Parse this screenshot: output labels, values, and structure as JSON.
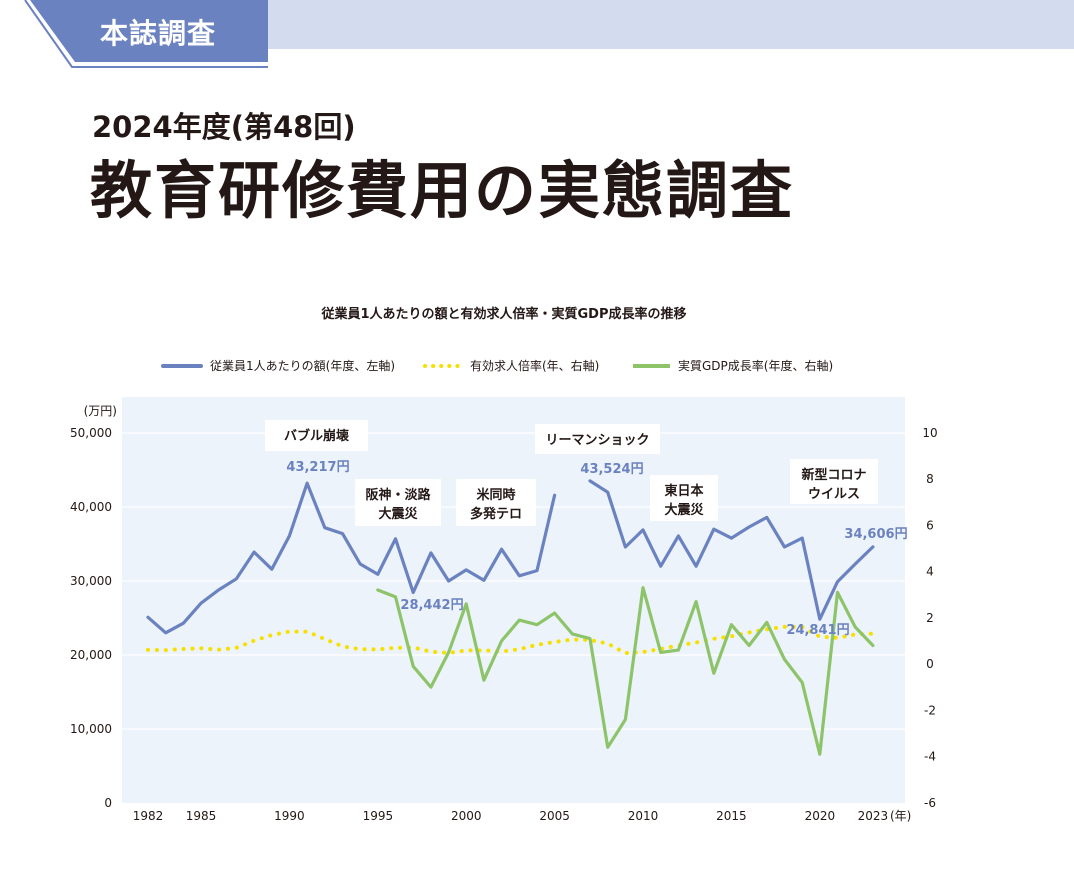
{
  "header": {
    "section_tab": "本誌調査",
    "subtitle": "2024年度(第48回)",
    "title": "教育研修費用の実態調査"
  },
  "colors": {
    "tab": "#6b82c1",
    "band": "#d3dcef",
    "plot_bg": "#edf3fb",
    "blue": "#6b82c1",
    "yellow": "#f5e000",
    "green": "#8dc46a"
  },
  "chart_data": {
    "type": "line",
    "title": "従業員1人あたりの額と有効求人倍率・実質GDP成長率の推移",
    "legend_position": "top",
    "grid": true,
    "x_ticks": [
      "1982",
      "1985",
      "1990",
      "1995",
      "2000",
      "2005",
      "2010",
      "2015",
      "2020",
      "2023"
    ],
    "x_unit": "(年)",
    "left_axis": {
      "unit": "(万円)",
      "range": [
        0,
        50000
      ],
      "ticks": [
        "0",
        "10,000",
        "20,000",
        "30,000",
        "40,000",
        "50,000"
      ]
    },
    "right_axis": {
      "range": [
        -6,
        10
      ],
      "ticks": [
        "-6",
        "-4",
        "-2",
        "0",
        "2",
        "4",
        "6",
        "8",
        "10"
      ]
    },
    "x": [
      1982,
      1983,
      1984,
      1985,
      1986,
      1987,
      1988,
      1989,
      1990,
      1991,
      1992,
      1993,
      1994,
      1995,
      1996,
      1997,
      1998,
      1999,
      2000,
      2001,
      2002,
      2003,
      2004,
      2005,
      2006,
      2007,
      2008,
      2009,
      2010,
      2011,
      2012,
      2013,
      2014,
      2015,
      2016,
      2017,
      2018,
      2019,
      2020,
      2021,
      2022,
      2023
    ],
    "series": [
      {
        "name": "従業員1人あたりの額(年度、左軸)",
        "axis": "left",
        "style": "solid",
        "color": "#6b82c1",
        "values": [
          25100,
          23000,
          24300,
          27000,
          28800,
          30300,
          33900,
          31600,
          36100,
          43217,
          37200,
          36400,
          32300,
          30900,
          35700,
          28442,
          33800,
          30000,
          31500,
          30100,
          34300,
          30700,
          31400,
          41600,
          null,
          43524,
          42000,
          34600,
          36900,
          32000,
          36100,
          32000,
          37000,
          35800,
          37300,
          38600,
          34600,
          35800,
          24841,
          29900,
          32300,
          34606
        ]
      },
      {
        "name": "有効求人倍率(年、右軸)",
        "axis": "right",
        "style": "dotted",
        "color": "#f5e000",
        "values": [
          0.61,
          0.6,
          0.65,
          0.68,
          0.62,
          0.7,
          1.01,
          1.25,
          1.4,
          1.4,
          1.08,
          0.76,
          0.64,
          0.63,
          0.7,
          0.72,
          0.53,
          0.48,
          0.59,
          0.59,
          0.54,
          0.64,
          0.83,
          0.95,
          1.06,
          1.04,
          0.88,
          0.47,
          0.52,
          0.65,
          0.8,
          0.93,
          1.09,
          1.2,
          1.36,
          1.5,
          1.61,
          1.6,
          1.18,
          1.13,
          1.28,
          1.31
        ]
      },
      {
        "name": "実質GDP成長率(年度、右軸)",
        "axis": "right",
        "style": "solid",
        "color": "#8dc46a",
        "values": [
          null,
          null,
          null,
          null,
          null,
          null,
          null,
          null,
          null,
          null,
          null,
          null,
          null,
          3.2,
          2.9,
          -0.1,
          -1.0,
          0.5,
          2.6,
          -0.7,
          1.0,
          1.9,
          1.7,
          2.2,
          1.3,
          1.1,
          -3.6,
          -2.4,
          3.3,
          0.5,
          0.6,
          2.7,
          -0.4,
          1.7,
          0.8,
          1.8,
          0.2,
          -0.8,
          -3.9,
          3.1,
          1.6,
          0.8
        ]
      }
    ],
    "annotations": [
      {
        "text": [
          "バブル崩壊"
        ]
      },
      {
        "text": [
          "阪神・淡路",
          "大震災"
        ]
      },
      {
        "text": [
          "米同時",
          "多発テロ"
        ]
      },
      {
        "text": [
          "リーマンショック"
        ]
      },
      {
        "text": [
          "東日本",
          "大震災"
        ]
      },
      {
        "text": [
          "新型コロナ",
          "ウイルス"
        ]
      }
    ],
    "data_labels": [
      "43,217円",
      "28,442円",
      "43,524円",
      "24,841円",
      "34,606円"
    ]
  }
}
